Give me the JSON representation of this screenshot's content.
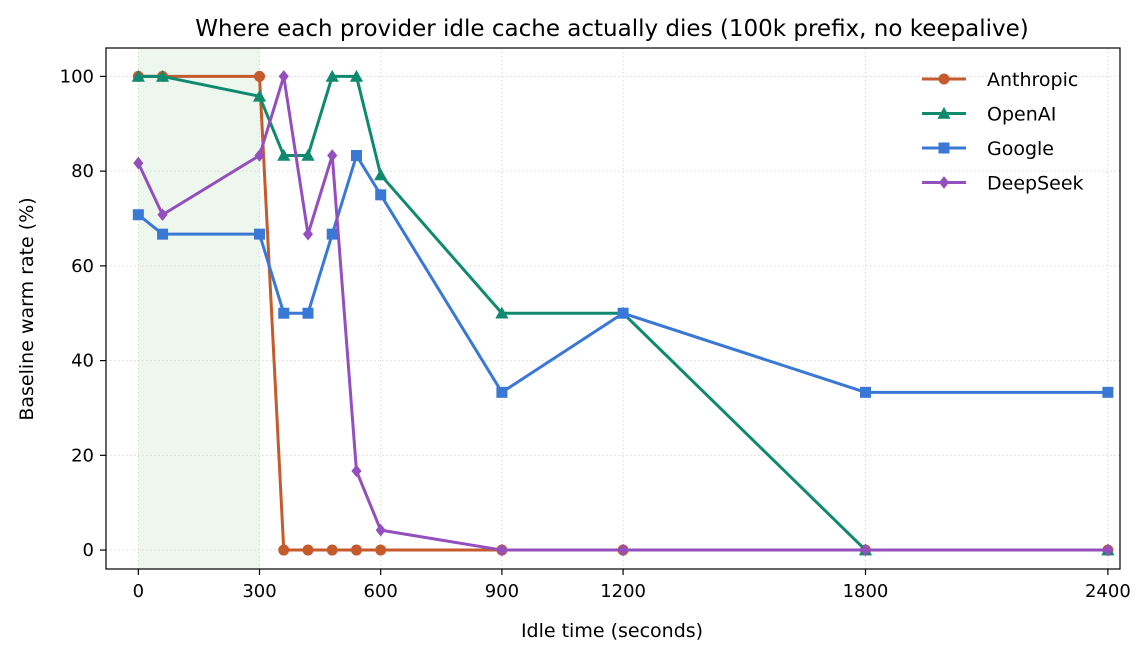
{
  "chart_data": {
    "type": "line",
    "title": "Where each provider idle cache actually dies (100k prefix, no keepalive)",
    "xlabel": "Idle time (seconds)",
    "ylabel": "Baseline warm rate (%)",
    "xlim": [
      -80,
      2430
    ],
    "ylim": [
      -4,
      106
    ],
    "xticks": [
      0,
      300,
      600,
      900,
      1200,
      1800,
      2400
    ],
    "yticks": [
      0,
      20,
      40,
      60,
      80,
      100
    ],
    "grid": true,
    "grid_style": "dotted",
    "legend_position": "top-right",
    "shaded_region": {
      "x_from": 0,
      "x_to": 300,
      "color": "#eef7ee"
    },
    "series": [
      {
        "name": "Anthropic",
        "color": "#c55a2c",
        "marker": "circle",
        "x": [
          0,
          60,
          300,
          360,
          420,
          480,
          540,
          600,
          900,
          1200,
          1800,
          2400
        ],
        "y": [
          100,
          100,
          100,
          0,
          0,
          0,
          0,
          0,
          0,
          0,
          0,
          0
        ]
      },
      {
        "name": "OpenAI",
        "color": "#0f8a6e",
        "marker": "triangle",
        "x": [
          0,
          60,
          300,
          360,
          420,
          480,
          540,
          600,
          900,
          1200,
          1800,
          2400
        ],
        "y": [
          100,
          100,
          95.8,
          83.3,
          83.3,
          100,
          100,
          79.2,
          50,
          50,
          0,
          0
        ]
      },
      {
        "name": "Google",
        "color": "#3a78d6",
        "marker": "square",
        "x": [
          0,
          60,
          300,
          360,
          420,
          480,
          540,
          600,
          900,
          1200,
          1800,
          2400
        ],
        "y": [
          70.8,
          66.7,
          66.7,
          50,
          50,
          66.7,
          83.3,
          75,
          33.3,
          50,
          33.3,
          33.3
        ]
      },
      {
        "name": "DeepSeek",
        "color": "#944fbf",
        "marker": "diamond",
        "x": [
          0,
          60,
          300,
          360,
          420,
          480,
          540,
          600,
          900,
          1200,
          1800,
          2400
        ],
        "y": [
          81.7,
          70.8,
          83.3,
          100,
          66.7,
          83.3,
          16.7,
          4.2,
          0,
          0,
          0,
          0
        ]
      }
    ]
  }
}
